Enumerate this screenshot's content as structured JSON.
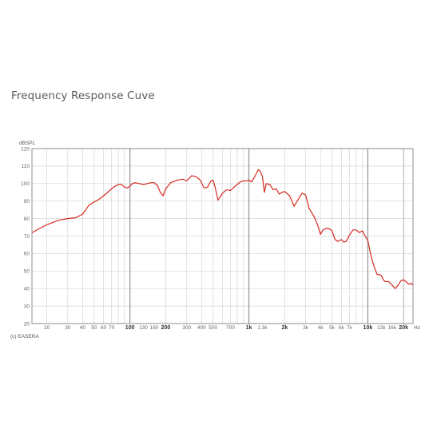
{
  "title": "Frequency Response Cuve",
  "chart_data": {
    "type": "line",
    "title": "Frequency Response Cuve",
    "ylabel": "dBSPL",
    "xlabel": "Hz",
    "x_scale": "log",
    "xlim": [
      15,
      24000
    ],
    "ylim": [
      20,
      120
    ],
    "grid": true,
    "y_ticks": [
      20,
      30,
      40,
      50,
      60,
      70,
      80,
      90,
      100,
      110,
      120
    ],
    "x_ticks": [
      {
        "v": 20,
        "label": "20",
        "bold": false
      },
      {
        "v": 30,
        "label": "30",
        "bold": false
      },
      {
        "v": 40,
        "label": "40",
        "bold": false
      },
      {
        "v": 50,
        "label": "50",
        "bold": false
      },
      {
        "v": 60,
        "label": "60",
        "bold": false
      },
      {
        "v": 70,
        "label": "70",
        "bold": false
      },
      {
        "v": 100,
        "label": "100",
        "bold": true
      },
      {
        "v": 130,
        "label": "130",
        "bold": false
      },
      {
        "v": 160,
        "label": "160",
        "bold": false
      },
      {
        "v": 200,
        "label": "200",
        "bold": true
      },
      {
        "v": 300,
        "label": "300",
        "bold": false
      },
      {
        "v": 400,
        "label": "400",
        "bold": false
      },
      {
        "v": 500,
        "label": "500",
        "bold": false
      },
      {
        "v": 700,
        "label": "700",
        "bold": false
      },
      {
        "v": 1000,
        "label": "1k",
        "bold": true
      },
      {
        "v": 1300,
        "label": "1.3k",
        "bold": false
      },
      {
        "v": 2000,
        "label": "2k",
        "bold": true
      },
      {
        "v": 3000,
        "label": "3k",
        "bold": false
      },
      {
        "v": 4000,
        "label": "4k",
        "bold": false
      },
      {
        "v": 5000,
        "label": "5k",
        "bold": false
      },
      {
        "v": 6000,
        "label": "6k",
        "bold": false
      },
      {
        "v": 7000,
        "label": "7k",
        "bold": false
      },
      {
        "v": 10000,
        "label": "10k",
        "bold": true
      },
      {
        "v": 13000,
        "label": "13k",
        "bold": false
      },
      {
        "v": 16000,
        "label": "16k",
        "bold": false
      },
      {
        "v": 20000,
        "label": "20k",
        "bold": true
      }
    ],
    "series": [
      {
        "color": "#d42a1e",
        "x": [
          15,
          20,
          25,
          30,
          35,
          40,
          45,
          50,
          55,
          60,
          65,
          70,
          75,
          80,
          85,
          90,
          95,
          100,
          105,
          110,
          120,
          130,
          140,
          150,
          160,
          170,
          180,
          190,
          200,
          220,
          250,
          280,
          300,
          330,
          360,
          390,
          420,
          450,
          480,
          500,
          520,
          550,
          600,
          650,
          700,
          750,
          800,
          850,
          900,
          950,
          1000,
          1050,
          1100,
          1150,
          1200,
          1250,
          1300,
          1350,
          1400,
          1500,
          1600,
          1700,
          1800,
          1900,
          2000,
          2200,
          2400,
          2600,
          2800,
          3000,
          3200,
          3400,
          3600,
          3800,
          4000,
          4200,
          4500,
          4800,
          5000,
          5300,
          5600,
          6000,
          6300,
          6600,
          7000,
          7500,
          8000,
          8500,
          9000,
          9500,
          10000,
          10500,
          11000,
          11500,
          12000,
          12500,
          13000,
          13500,
          14000,
          15000,
          16000,
          17000,
          18000,
          19000,
          20000,
          21000,
          22000,
          23000,
          24000
        ],
        "y": [
          72,
          76.5,
          79,
          80,
          80.5,
          82.5,
          87.5,
          89.5,
          91,
          93,
          95,
          97,
          98.5,
          99.5,
          99.5,
          98,
          97.5,
          98.5,
          100,
          100.5,
          100,
          99.5,
          100,
          100.5,
          100.5,
          99,
          95,
          93,
          97,
          100.5,
          102,
          102.5,
          101.5,
          104.5,
          104,
          102,
          97.5,
          98,
          101.5,
          102,
          98,
          90.5,
          94.5,
          96.5,
          96,
          98,
          99.5,
          101,
          101.5,
          101.5,
          102,
          101,
          103,
          105.5,
          108,
          107,
          104,
          95,
          100,
          99.5,
          96.5,
          97,
          94,
          95,
          95.5,
          93,
          87,
          91,
          94.5,
          93.5,
          86,
          83,
          80,
          76,
          71,
          73.5,
          74.5,
          74,
          73,
          68,
          67,
          68,
          66.5,
          67,
          70.5,
          73.5,
          73.5,
          72,
          73,
          70,
          67.5,
          60.5,
          55,
          51,
          48,
          48,
          47.5,
          45,
          44,
          44,
          42,
          40,
          42,
          44.5,
          45,
          44,
          42.5,
          43,
          42
        ]
      }
    ],
    "credit": "(c) EASERA"
  }
}
